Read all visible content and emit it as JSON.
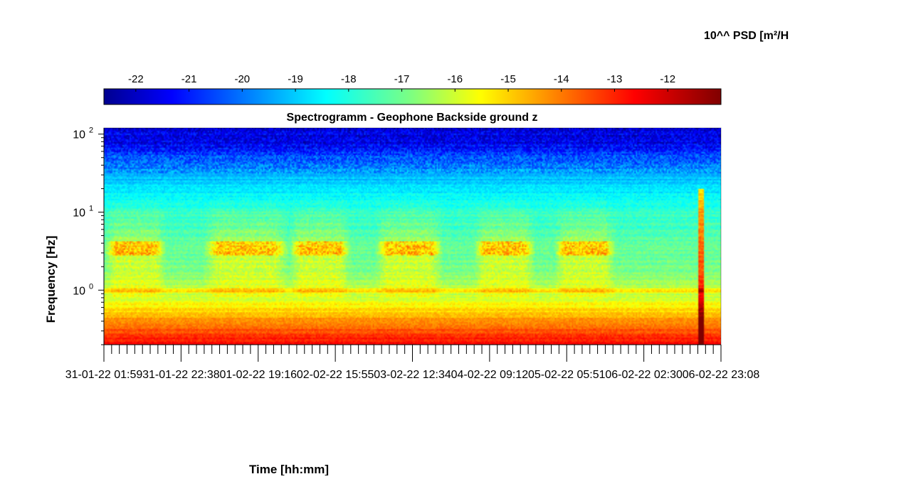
{
  "chart_data": {
    "type": "heatmap",
    "title": "Spectrogramm - Geophone Backside ground z",
    "xlabel": "Time [hh:mm]",
    "ylabel": "Frequency [Hz]",
    "y_scale": "log",
    "ylim_hz": [
      0.2,
      120
    ],
    "y_ticks": [
      {
        "value": 1,
        "label_base": "10",
        "label_exp": "0"
      },
      {
        "value": 10,
        "label_base": "10",
        "label_exp": "1"
      },
      {
        "value": 100,
        "label_base": "10",
        "label_exp": "2"
      }
    ],
    "x_tick_labels": [
      "31-01-22 01:59",
      "31-01-22 22:38",
      "01-02-22 19:16",
      "02-02-22 15:55",
      "03-02-22 12:34",
      "04-02-22 09:12",
      "05-02-22 05:51",
      "06-02-22 02:30",
      "06-02-22 23:08"
    ],
    "colorbar": {
      "label": "10^^ PSD [m²/H",
      "colormap": "jet",
      "range": [
        -22.6,
        -11
      ],
      "ticks": [
        -22,
        -21,
        -20,
        -19,
        -18,
        -17,
        -16,
        -15,
        -14,
        -13,
        -12
      ],
      "placement": "top"
    },
    "activity_bursts_fraction_of_time": [
      [
        0.0,
        0.1
      ],
      [
        0.16,
        0.3
      ],
      [
        0.3,
        0.4
      ],
      [
        0.44,
        0.55
      ],
      [
        0.6,
        0.7
      ],
      [
        0.73,
        0.83
      ]
    ],
    "event_line_fraction_of_time": 0.969,
    "grid": false
  }
}
